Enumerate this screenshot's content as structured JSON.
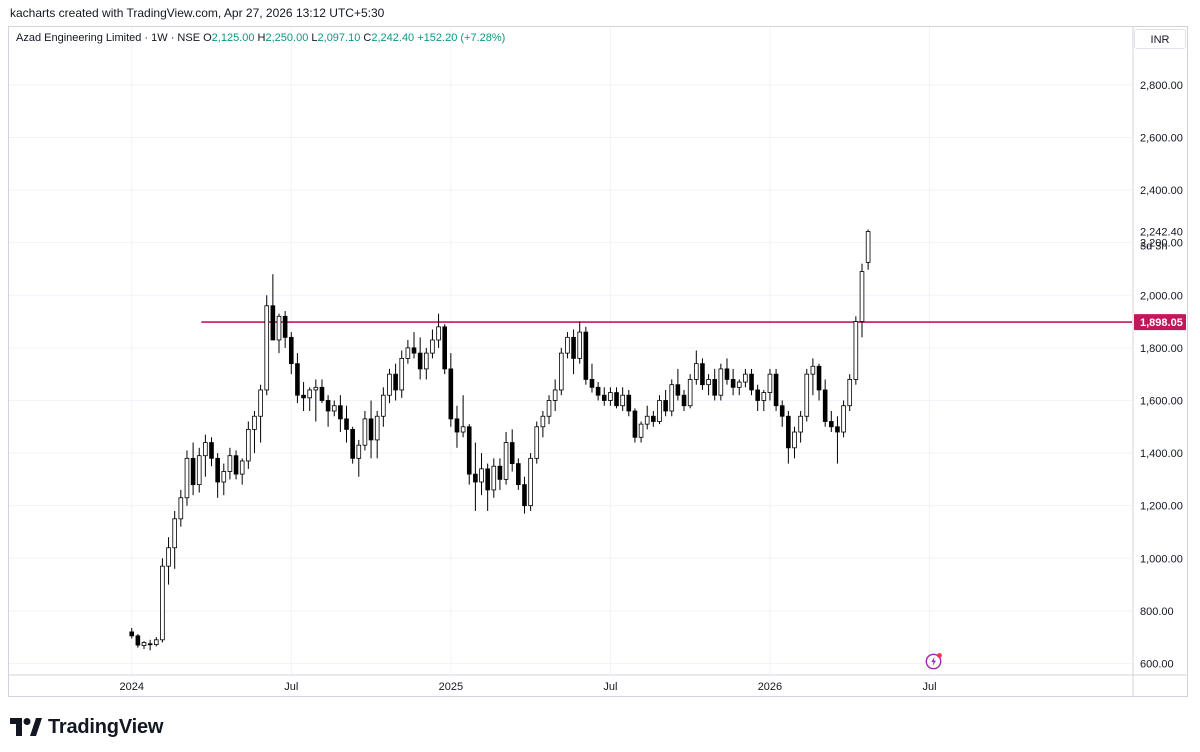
{
  "header": {
    "attribution": "kacharts created with TradingView.com, Apr 27, 2026 13:12 UTC+5:30"
  },
  "legend": {
    "symbol": "Azad Engineering Limited · 1W · NSE",
    "o_label": "O",
    "o_value": "2,125.00",
    "h_label": "H",
    "h_value": "2,250.00",
    "l_label": "L",
    "l_value": "2,097.10",
    "c_label": "C",
    "c_value": "2,242.40",
    "change": "+152.20 (+7.28%)"
  },
  "currency_button": "INR",
  "footer": {
    "brand": "TradingView"
  },
  "icons": {
    "flash": "flash-icon",
    "logo": "tradingview-logo-icon"
  },
  "colors": {
    "up_candle_fill": "#ffffff",
    "down_candle_fill": "#000000",
    "candle_outline": "#000000",
    "level_line": "#c2185b",
    "grid": "#f0f3fa",
    "axis_text": "#131722"
  },
  "chart_data": {
    "type": "candlestick",
    "title": "",
    "timeframe": "1W",
    "exchange": "NSE",
    "ylim": [
      560,
      3020
    ],
    "y_ticks": [
      600,
      800,
      1000,
      1200,
      1400,
      1600,
      1800,
      2000,
      2200,
      2400,
      2600,
      2800
    ],
    "y_tick_labels": [
      "600.00",
      "800.00",
      "1,000.00",
      "1,200.00",
      "1,400.00",
      "1,600.00",
      "1,800.00",
      "2,000.00",
      "2,200.00",
      "2,400.00",
      "2,600.00",
      "2,800.00"
    ],
    "x_labels": [
      {
        "label": "2024",
        "week": 0
      },
      {
        "label": "Jul",
        "week": 26
      },
      {
        "label": "2025",
        "week": 52
      },
      {
        "label": "Jul",
        "week": 78
      },
      {
        "label": "2026",
        "week": 104
      },
      {
        "label": "Jul",
        "week": 130
      }
    ],
    "week_range": [
      -20,
      163
    ],
    "current_price": {
      "value": 2242.4,
      "label": "2,242.40",
      "countdown": "3d 3h"
    },
    "horizontal_levels": [
      {
        "value": 1898.05,
        "label": "1,898.05",
        "from_week": 12
      }
    ],
    "candles_start_week": 0,
    "candles": [
      [
        720,
        735,
        695,
        705
      ],
      [
        705,
        712,
        660,
        670
      ],
      [
        668,
        685,
        655,
        680
      ],
      [
        675,
        690,
        650,
        672
      ],
      [
        672,
        700,
        665,
        690
      ],
      [
        690,
        1000,
        680,
        970
      ],
      [
        970,
        1080,
        900,
        1040
      ],
      [
        1040,
        1180,
        960,
        1150
      ],
      [
        1150,
        1260,
        1120,
        1230
      ],
      [
        1230,
        1410,
        1200,
        1380
      ],
      [
        1380,
        1440,
        1240,
        1280
      ],
      [
        1280,
        1420,
        1250,
        1390
      ],
      [
        1390,
        1470,
        1310,
        1440
      ],
      [
        1440,
        1460,
        1350,
        1380
      ],
      [
        1380,
        1400,
        1230,
        1290
      ],
      [
        1290,
        1360,
        1240,
        1330
      ],
      [
        1330,
        1420,
        1300,
        1390
      ],
      [
        1390,
        1410,
        1300,
        1320
      ],
      [
        1320,
        1380,
        1280,
        1370
      ],
      [
        1370,
        1520,
        1340,
        1490
      ],
      [
        1490,
        1560,
        1400,
        1540
      ],
      [
        1540,
        1660,
        1440,
        1640
      ],
      [
        1640,
        2000,
        1620,
        1960
      ],
      [
        1960,
        2080,
        1840,
        1830
      ],
      [
        1830,
        1930,
        1780,
        1920
      ],
      [
        1920,
        1940,
        1800,
        1840
      ],
      [
        1840,
        1860,
        1700,
        1740
      ],
      [
        1740,
        1780,
        1590,
        1620
      ],
      [
        1620,
        1670,
        1560,
        1610
      ],
      [
        1610,
        1650,
        1560,
        1640
      ],
      [
        1640,
        1680,
        1520,
        1650
      ],
      [
        1650,
        1680,
        1590,
        1600
      ],
      [
        1600,
        1620,
        1500,
        1560
      ],
      [
        1560,
        1600,
        1540,
        1580
      ],
      [
        1580,
        1620,
        1480,
        1530
      ],
      [
        1530,
        1580,
        1440,
        1490
      ],
      [
        1490,
        1500,
        1360,
        1380
      ],
      [
        1380,
        1450,
        1310,
        1430
      ],
      [
        1430,
        1560,
        1410,
        1530
      ],
      [
        1530,
        1600,
        1380,
        1450
      ],
      [
        1450,
        1560,
        1380,
        1540
      ],
      [
        1540,
        1650,
        1500,
        1620
      ],
      [
        1620,
        1720,
        1590,
        1700
      ],
      [
        1700,
        1740,
        1600,
        1640
      ],
      [
        1640,
        1790,
        1610,
        1760
      ],
      [
        1760,
        1830,
        1740,
        1800
      ],
      [
        1800,
        1860,
        1760,
        1780
      ],
      [
        1780,
        1840,
        1680,
        1720
      ],
      [
        1720,
        1800,
        1680,
        1780
      ],
      [
        1780,
        1870,
        1760,
        1830
      ],
      [
        1830,
        1930,
        1800,
        1880
      ],
      [
        1880,
        1890,
        1700,
        1720
      ],
      [
        1720,
        1780,
        1500,
        1530
      ],
      [
        1530,
        1580,
        1420,
        1480
      ],
      [
        1480,
        1620,
        1460,
        1500
      ],
      [
        1500,
        1510,
        1280,
        1320
      ],
      [
        1320,
        1440,
        1180,
        1290
      ],
      [
        1290,
        1400,
        1240,
        1340
      ],
      [
        1340,
        1360,
        1180,
        1260
      ],
      [
        1260,
        1380,
        1230,
        1350
      ],
      [
        1350,
        1380,
        1260,
        1300
      ],
      [
        1300,
        1480,
        1280,
        1440
      ],
      [
        1440,
        1490,
        1330,
        1360
      ],
      [
        1360,
        1380,
        1260,
        1280
      ],
      [
        1280,
        1310,
        1170,
        1200
      ],
      [
        1200,
        1400,
        1180,
        1380
      ],
      [
        1380,
        1520,
        1360,
        1500
      ],
      [
        1500,
        1560,
        1460,
        1540
      ],
      [
        1540,
        1620,
        1510,
        1600
      ],
      [
        1600,
        1680,
        1560,
        1640
      ],
      [
        1640,
        1800,
        1620,
        1780
      ],
      [
        1780,
        1860,
        1760,
        1840
      ],
      [
        1840,
        1870,
        1700,
        1760
      ],
      [
        1760,
        1900,
        1740,
        1860
      ],
      [
        1860,
        1880,
        1660,
        1680
      ],
      [
        1680,
        1740,
        1630,
        1650
      ],
      [
        1650,
        1670,
        1600,
        1620
      ],
      [
        1620,
        1650,
        1580,
        1600
      ],
      [
        1600,
        1650,
        1580,
        1630
      ],
      [
        1630,
        1650,
        1570,
        1580
      ],
      [
        1580,
        1650,
        1560,
        1620
      ],
      [
        1620,
        1640,
        1540,
        1560
      ],
      [
        1560,
        1570,
        1440,
        1460
      ],
      [
        1460,
        1520,
        1440,
        1510
      ],
      [
        1510,
        1580,
        1490,
        1540
      ],
      [
        1540,
        1560,
        1500,
        1520
      ],
      [
        1520,
        1620,
        1510,
        1600
      ],
      [
        1600,
        1640,
        1540,
        1560
      ],
      [
        1560,
        1680,
        1540,
        1660
      ],
      [
        1660,
        1720,
        1600,
        1620
      ],
      [
        1620,
        1640,
        1560,
        1580
      ],
      [
        1580,
        1700,
        1570,
        1680
      ],
      [
        1680,
        1790,
        1660,
        1740
      ],
      [
        1740,
        1760,
        1640,
        1660
      ],
      [
        1660,
        1700,
        1620,
        1680
      ],
      [
        1680,
        1720,
        1600,
        1620
      ],
      [
        1620,
        1740,
        1600,
        1720
      ],
      [
        1720,
        1760,
        1660,
        1680
      ],
      [
        1680,
        1720,
        1620,
        1650
      ],
      [
        1650,
        1680,
        1620,
        1670
      ],
      [
        1670,
        1720,
        1650,
        1700
      ],
      [
        1700,
        1720,
        1620,
        1640
      ],
      [
        1640,
        1660,
        1560,
        1600
      ],
      [
        1600,
        1640,
        1560,
        1630
      ],
      [
        1630,
        1720,
        1600,
        1700
      ],
      [
        1700,
        1720,
        1560,
        1580
      ],
      [
        1580,
        1600,
        1500,
        1540
      ],
      [
        1540,
        1560,
        1360,
        1420
      ],
      [
        1420,
        1500,
        1380,
        1480
      ],
      [
        1480,
        1560,
        1440,
        1540
      ],
      [
        1540,
        1720,
        1520,
        1700
      ],
      [
        1700,
        1760,
        1620,
        1730
      ],
      [
        1730,
        1740,
        1600,
        1640
      ],
      [
        1640,
        1680,
        1500,
        1520
      ],
      [
        1520,
        1560,
        1480,
        1500
      ],
      [
        1500,
        1540,
        1360,
        1480
      ],
      [
        1480,
        1600,
        1460,
        1580
      ],
      [
        1580,
        1700,
        1560,
        1680
      ],
      [
        1680,
        1920,
        1660,
        1900
      ],
      [
        1900,
        2120,
        1840,
        2090
      ],
      [
        2125,
        2250,
        2097.1,
        2242.4
      ]
    ]
  }
}
